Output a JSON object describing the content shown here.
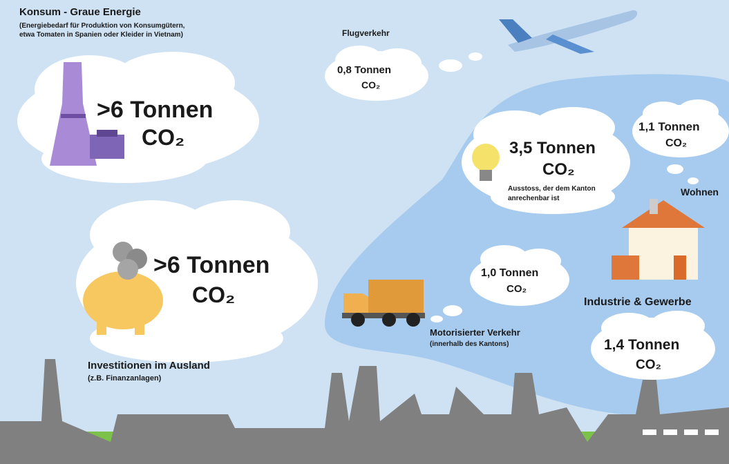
{
  "header": {
    "title": "Konsum - Graue Energie",
    "subtitle": [
      "(Energiebedarf für Produktion von Konsumgütern,",
      "etwa Tomaten in Spanien oder Kleider in Vietnam)"
    ]
  },
  "consumption": {
    "amount": ">6 Tonnen",
    "unit": "CO₂"
  },
  "flights": {
    "label": "Flugverkehr",
    "amount": "0,8 Tonnen",
    "unit": "CO₂"
  },
  "canton": {
    "amount": "3,5 Tonnen",
    "unit": "CO₂",
    "note": [
      "Ausstoss, der dem Kanton",
      "anrechenbar ist"
    ]
  },
  "housing": {
    "label": "Wohnen",
    "amount": "1,1 Tonnen",
    "unit": "CO₂"
  },
  "investments": {
    "label": "Investitionen im Ausland",
    "note": "(z.B. Finanzanlagen)",
    "amount": ">6 Tonnen",
    "unit": "CO₂"
  },
  "traffic": {
    "label": "Motorisierter Verkehr",
    "note": "(innerhalb des Kantons)",
    "amount": "1,0 Tonnen",
    "unit": "CO₂"
  },
  "industry": {
    "label": "Industrie & Gewerbe",
    "amount": "1,4 Tonnen",
    "unit": "CO₂"
  }
}
